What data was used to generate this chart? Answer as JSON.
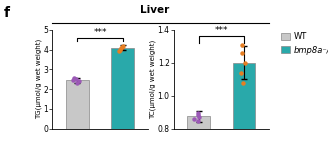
{
  "title": "Liver",
  "panel_label": "f",
  "tg_ylabel": "TG(μmol/g wet weight)",
  "tc_ylabel": "TC(μmol/g wet weight)",
  "tg_ylim": [
    0,
    5
  ],
  "tc_ylim": [
    0.8,
    1.4
  ],
  "tg_yticks": [
    0,
    1,
    2,
    3,
    4,
    5
  ],
  "tc_yticks": [
    0.8,
    1.0,
    1.2,
    1.4
  ],
  "tg_wt_mean": 2.45,
  "tg_wt_err": 0.12,
  "tg_ko_mean": 4.1,
  "tg_ko_err": 0.13,
  "tc_wt_mean": 0.875,
  "tc_wt_err": 0.035,
  "tc_ko_mean": 1.2,
  "tc_ko_err": 0.1,
  "wt_color": "#c8c8c8",
  "ko_color": "#29a9aa",
  "wt_dot_color": "#9b59b6",
  "ko_dot_color": "#e67e22",
  "bar_width": 0.5,
  "significance": "***",
  "legend_wt": "WT",
  "legend_ko": "bmp8a⁻/⁻",
  "tg_wt_dots": [
    2.33,
    2.4,
    2.45,
    2.5,
    2.55
  ],
  "tg_ko_dots": [
    3.92,
    4.0,
    4.08,
    4.14,
    4.2
  ],
  "tc_wt_dots": [
    0.845,
    0.858,
    0.87,
    0.882,
    0.898
  ],
  "tc_ko_dots": [
    1.08,
    1.14,
    1.2,
    1.26,
    1.31
  ]
}
